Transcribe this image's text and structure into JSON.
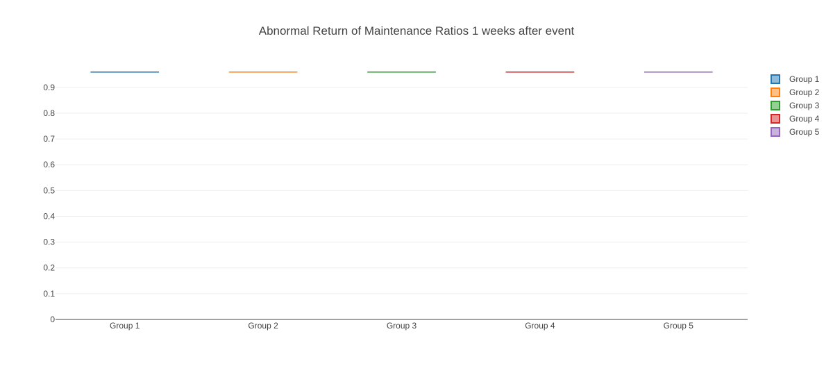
{
  "chart_data": {
    "type": "box",
    "title": "Abnormal Return of Maintenance Ratios 1 weeks after event",
    "xlabel": "",
    "ylabel": "",
    "categories": [
      "Group 1",
      "Group 2",
      "Group 3",
      "Group 4",
      "Group 5"
    ],
    "series": [
      {
        "name": "Group 1",
        "category": "Group 1",
        "values": [
          0.96
        ],
        "color": "#1f77b4"
      },
      {
        "name": "Group 2",
        "category": "Group 2",
        "values": [
          0.96
        ],
        "color": "#ff7f0e"
      },
      {
        "name": "Group 3",
        "category": "Group 3",
        "values": [
          0.96
        ],
        "color": "#2ca02c"
      },
      {
        "name": "Group 4",
        "category": "Group 4",
        "values": [
          0.96
        ],
        "color": "#d62728"
      },
      {
        "name": "Group 5",
        "category": "Group 5",
        "values": [
          0.96
        ],
        "color": "#9467bd"
      }
    ],
    "ylim": [
      0,
      1.01
    ],
    "yticks": [
      0,
      0.1,
      0.2,
      0.3,
      0.4,
      0.5,
      0.6,
      0.7,
      0.8,
      0.9
    ],
    "ytick_labels": [
      "0",
      "0.1",
      "0.2",
      "0.3",
      "0.4",
      "0.5",
      "0.6",
      "0.7",
      "0.8",
      "0.9"
    ],
    "grid": true,
    "legend_position": "right-top"
  }
}
